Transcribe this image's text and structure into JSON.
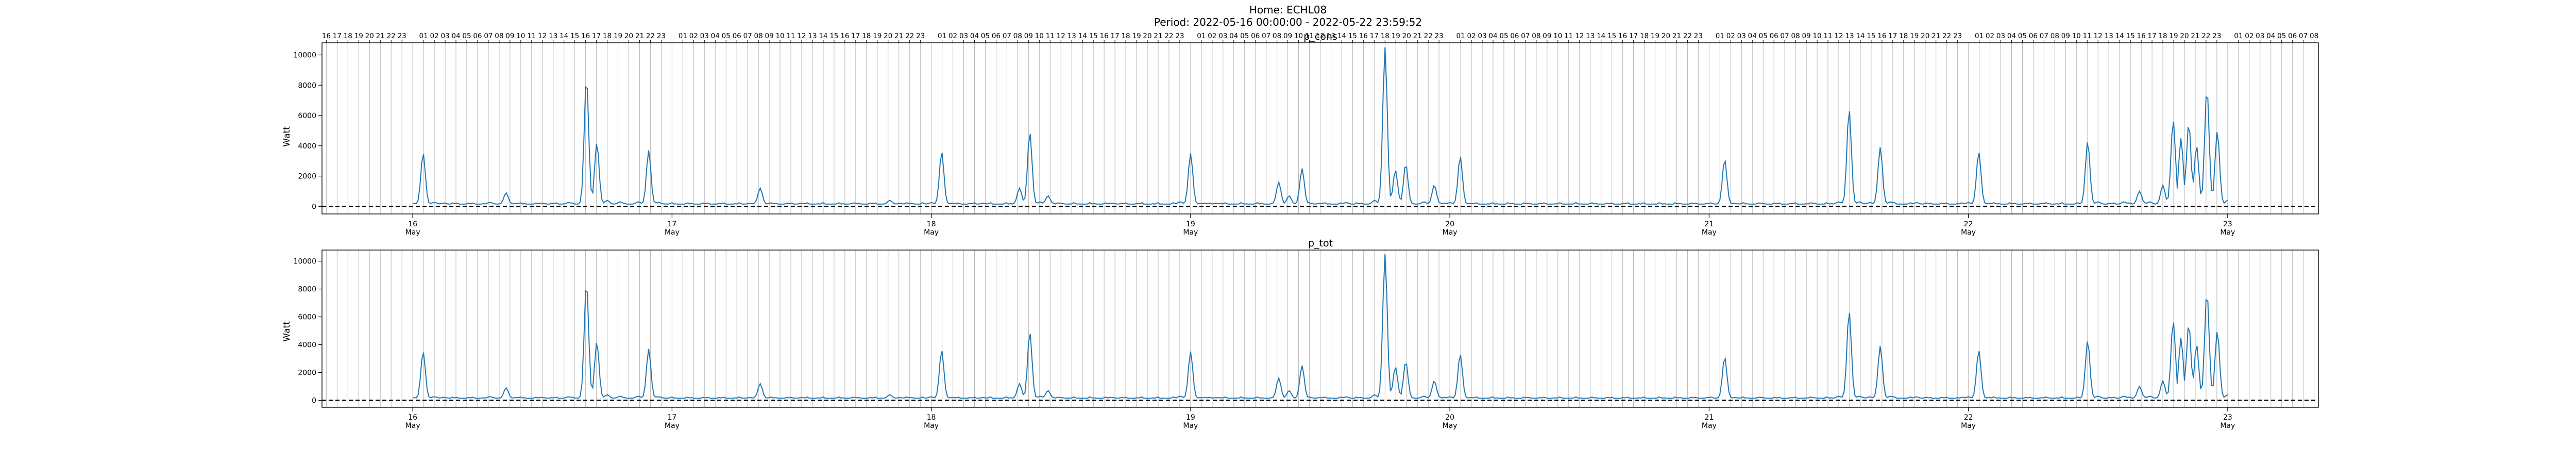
{
  "figure": {
    "suptitle_home": "Home: ECHL08",
    "suptitle_period": "Period: 2022-05-16 00:00:00 - 2022-05-22 23:59:52"
  },
  "chart_data": [
    {
      "type": "line",
      "title": "p_cons",
      "xlabel": "",
      "ylabel": "Watt",
      "ylim": [
        -500,
        10800
      ],
      "yticks": [
        0,
        2000,
        4000,
        6000,
        8000,
        10000
      ],
      "x_range_days": [
        15.65,
        23.35
      ],
      "x_major_ticks": [
        {
          "day": 16,
          "label": "16",
          "sublabel": "May"
        },
        {
          "day": 17,
          "label": "17",
          "sublabel": "May"
        },
        {
          "day": 18,
          "label": "18",
          "sublabel": "May"
        },
        {
          "day": 19,
          "label": "19",
          "sublabel": "May"
        },
        {
          "day": 20,
          "label": "20",
          "sublabel": "May"
        },
        {
          "day": 21,
          "label": "21",
          "sublabel": "May"
        },
        {
          "day": 22,
          "label": "22",
          "sublabel": "May"
        },
        {
          "day": 23,
          "label": "23",
          "sublabel": "May"
        }
      ],
      "top_hour_ticks": true,
      "hour_grid": true,
      "baseline": {
        "y": 0,
        "style": "dashed",
        "color": "#000000"
      },
      "series": [
        {
          "color": "#1f77b4",
          "x_day": [
            16.0,
            16.04,
            16.08,
            16.12,
            16.3,
            16.36,
            16.4,
            16.5,
            16.6,
            16.67,
            16.71,
            16.75,
            16.8,
            16.87,
            16.91,
            16.95,
            17.0,
            17.1,
            17.3,
            17.34,
            17.38,
            17.5,
            17.7,
            17.84,
            17.88,
            17.92,
            18.0,
            18.04,
            18.08,
            18.2,
            18.34,
            18.38,
            18.42,
            18.45,
            18.5,
            18.7,
            18.96,
            19.0,
            19.04,
            19.1,
            19.34,
            19.38,
            19.43,
            19.46,
            19.5,
            19.6,
            19.71,
            19.75,
            19.79,
            19.83,
            19.9,
            19.94,
            20.0,
            20.04,
            20.08,
            20.3,
            20.6,
            21.0,
            21.06,
            21.1,
            21.2,
            21.4,
            21.5,
            21.54,
            21.58,
            21.62,
            21.66,
            21.7,
            21.8,
            22.0,
            22.04,
            22.08,
            22.3,
            22.46,
            22.5,
            22.6,
            22.66,
            22.7,
            22.75,
            22.79,
            22.82,
            22.85,
            22.88,
            22.92,
            22.96,
            23.0
          ],
          "y": [
            200,
            3500,
            250,
            220,
            250,
            900,
            200,
            200,
            250,
            8500,
            4200,
            400,
            300,
            300,
            3700,
            250,
            100,
            150,
            200,
            1200,
            200,
            200,
            200,
            400,
            200,
            200,
            250,
            3600,
            200,
            200,
            1200,
            4900,
            300,
            700,
            200,
            200,
            300,
            3500,
            200,
            200,
            1600,
            700,
            2500,
            200,
            200,
            250,
            400,
            10500,
            2400,
            2800,
            300,
            1400,
            250,
            3300,
            200,
            200,
            150,
            200,
            3100,
            200,
            200,
            200,
            300,
            6400,
            300,
            250,
            3900,
            300,
            250,
            250,
            3600,
            200,
            200,
            4300,
            300,
            300,
            1000,
            300,
            1400,
            5700,
            4500,
            5500,
            4000,
            7800,
            5000,
            400
          ],
          "baseline_value": 150
        }
      ]
    },
    {
      "type": "line",
      "title": "p_tot",
      "xlabel": "",
      "ylabel": "Watt",
      "ylim": [
        -500,
        10800
      ],
      "yticks": [
        0,
        2000,
        4000,
        6000,
        8000,
        10000
      ],
      "x_range_days": [
        15.65,
        23.35
      ],
      "x_major_ticks": [
        {
          "day": 16,
          "label": "16",
          "sublabel": "May"
        },
        {
          "day": 17,
          "label": "17",
          "sublabel": "May"
        },
        {
          "day": 18,
          "label": "18",
          "sublabel": "May"
        },
        {
          "day": 19,
          "label": "19",
          "sublabel": "May"
        },
        {
          "day": 20,
          "label": "20",
          "sublabel": "May"
        },
        {
          "day": 21,
          "label": "21",
          "sublabel": "May"
        },
        {
          "day": 22,
          "label": "22",
          "sublabel": "May"
        },
        {
          "day": 23,
          "label": "23",
          "sublabel": "May"
        }
      ],
      "top_hour_ticks": false,
      "hour_grid": true,
      "baseline": {
        "y": 0,
        "style": "dashed",
        "color": "#000000"
      },
      "series": [
        {
          "color": "#1f77b4",
          "x_day": [
            16.0,
            16.04,
            16.08,
            16.12,
            16.3,
            16.36,
            16.4,
            16.5,
            16.6,
            16.67,
            16.71,
            16.75,
            16.8,
            16.87,
            16.91,
            16.95,
            17.0,
            17.1,
            17.3,
            17.34,
            17.38,
            17.5,
            17.7,
            17.84,
            17.88,
            17.92,
            18.0,
            18.04,
            18.08,
            18.2,
            18.34,
            18.38,
            18.42,
            18.45,
            18.5,
            18.7,
            18.96,
            19.0,
            19.04,
            19.1,
            19.34,
            19.38,
            19.43,
            19.46,
            19.5,
            19.6,
            19.71,
            19.75,
            19.79,
            19.83,
            19.9,
            19.94,
            20.0,
            20.04,
            20.08,
            20.3,
            20.6,
            21.0,
            21.06,
            21.1,
            21.2,
            21.4,
            21.5,
            21.54,
            21.58,
            21.62,
            21.66,
            21.7,
            21.8,
            22.0,
            22.04,
            22.08,
            22.3,
            22.46,
            22.5,
            22.6,
            22.66,
            22.7,
            22.75,
            22.79,
            22.82,
            22.85,
            22.88,
            22.92,
            22.96,
            23.0
          ],
          "y": [
            200,
            3500,
            250,
            220,
            250,
            900,
            200,
            200,
            250,
            8500,
            4200,
            400,
            300,
            300,
            3700,
            250,
            100,
            150,
            200,
            1200,
            200,
            200,
            200,
            400,
            200,
            200,
            250,
            3600,
            200,
            200,
            1200,
            4900,
            300,
            700,
            200,
            200,
            300,
            3500,
            200,
            200,
            1600,
            700,
            2500,
            200,
            200,
            250,
            400,
            10500,
            2400,
            2800,
            300,
            1400,
            250,
            3300,
            200,
            200,
            150,
            200,
            3100,
            200,
            200,
            200,
            300,
            6400,
            300,
            250,
            3900,
            300,
            250,
            250,
            3600,
            200,
            200,
            4300,
            300,
            300,
            1000,
            300,
            1400,
            5700,
            4500,
            5500,
            4000,
            7800,
            5000,
            400
          ],
          "baseline_value": 150
        }
      ]
    }
  ]
}
